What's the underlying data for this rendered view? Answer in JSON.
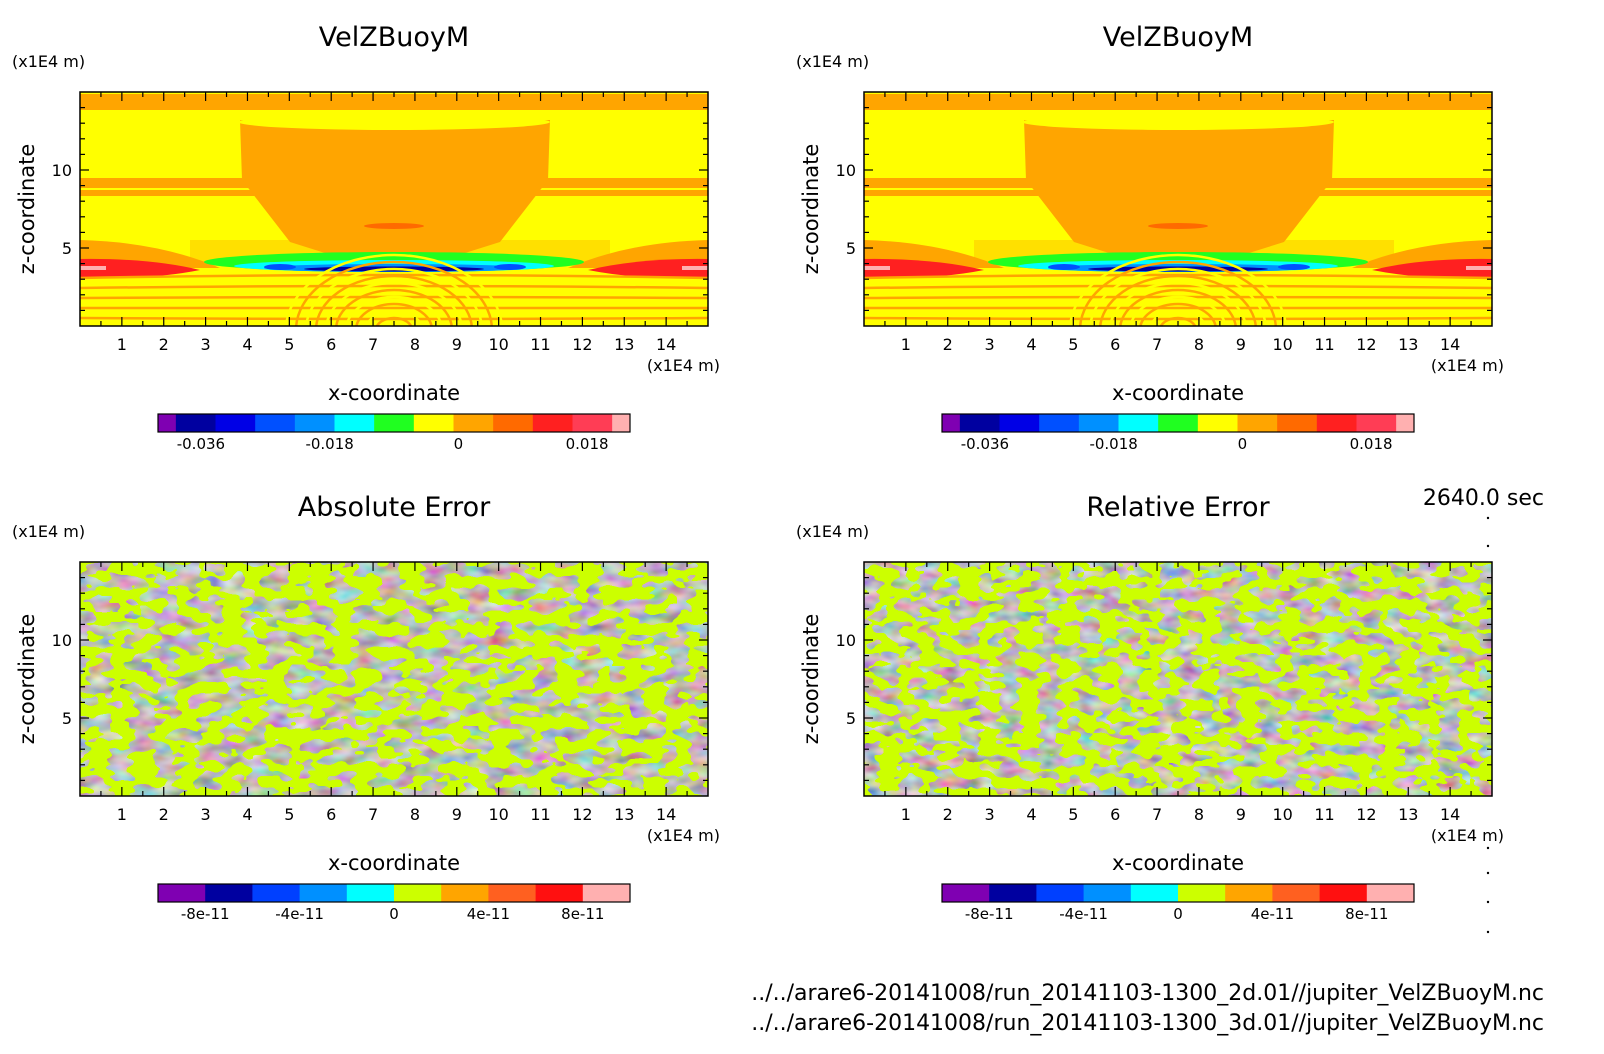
{
  "time_label": "2640.0 sec",
  "file_lines": [
    "../../arare6-20141008/run_20141103-1300_2d.01//jupiter_VelZBuoyM.nc",
    "../../arare6-20141008/run_20141103-1300_3d.01//jupiter_VelZBuoyM.nc"
  ],
  "colors": {
    "field_levels": [
      "#7f00b2",
      "#0000a0",
      "#0000e6",
      "#0050ff",
      "#0090ff",
      "#00ffff",
      "#20ff20",
      "#ffff00",
      "#ffa500",
      "#ff6a00",
      "#ff2020",
      "#ff3d55",
      "#ffb0b0"
    ],
    "error_levels": [
      "#7f00b2",
      "#0000a0",
      "#0040ff",
      "#0090ff",
      "#00ffff",
      "#ccff00",
      "#ffa500",
      "#ff6020",
      "#ff1010",
      "#ffb0b0"
    ]
  },
  "chart_data": [
    {
      "type": "heatmap",
      "title": "VelZBuoyM",
      "xlabel": "x-coordinate",
      "ylabel": "z-coordinate",
      "x_unit": "(x1E4 m)",
      "y_unit": "(x1E4 m)",
      "xlim": [
        0,
        15
      ],
      "ylim": [
        0,
        15
      ],
      "x_ticks": [
        "1",
        "2",
        "3",
        "4",
        "5",
        "6",
        "7",
        "8",
        "9",
        "10",
        "11",
        "12",
        "13",
        "14"
      ],
      "y_ticks": [
        "5",
        "10"
      ],
      "colorbar_ticks": [
        "-0.036",
        "-0.018",
        "0",
        "0.018"
      ],
      "colorbar_range": [
        -0.042,
        0.024
      ],
      "field": "velocity"
    },
    {
      "type": "heatmap",
      "title": "VelZBuoyM",
      "xlabel": "x-coordinate",
      "ylabel": "z-coordinate",
      "x_unit": "(x1E4 m)",
      "y_unit": "(x1E4 m)",
      "xlim": [
        0,
        15
      ],
      "ylim": [
        0,
        15
      ],
      "x_ticks": [
        "1",
        "2",
        "3",
        "4",
        "5",
        "6",
        "7",
        "8",
        "9",
        "10",
        "11",
        "12",
        "13",
        "14"
      ],
      "y_ticks": [
        "5",
        "10"
      ],
      "colorbar_ticks": [
        "-0.036",
        "-0.018",
        "0",
        "0.018"
      ],
      "colorbar_range": [
        -0.042,
        0.024
      ],
      "field": "velocity"
    },
    {
      "type": "heatmap",
      "title": "Absolute Error",
      "xlabel": "x-coordinate",
      "ylabel": "z-coordinate",
      "x_unit": "(x1E4 m)",
      "y_unit": "(x1E4 m)",
      "xlim": [
        0,
        15
      ],
      "ylim": [
        0,
        15
      ],
      "x_ticks": [
        "1",
        "2",
        "3",
        "4",
        "5",
        "6",
        "7",
        "8",
        "9",
        "10",
        "11",
        "12",
        "13",
        "14"
      ],
      "y_ticks": [
        "5",
        "10"
      ],
      "colorbar_ticks": [
        "-8e-11",
        "-4e-11",
        "0",
        "4e-11",
        "8e-11"
      ],
      "colorbar_range": [
        -1e-10,
        1e-10
      ],
      "field": "noise"
    },
    {
      "type": "heatmap",
      "title": "Relative Error",
      "xlabel": "x-coordinate",
      "ylabel": "z-coordinate",
      "x_unit": "(x1E4 m)",
      "y_unit": "(x1E4 m)",
      "xlim": [
        0,
        15
      ],
      "ylim": [
        0,
        15
      ],
      "x_ticks": [
        "1",
        "2",
        "3",
        "4",
        "5",
        "6",
        "7",
        "8",
        "9",
        "10",
        "11",
        "12",
        "13",
        "14"
      ],
      "y_ticks": [
        "5",
        "10"
      ],
      "colorbar_ticks": [
        "-8e-11",
        "-4e-11",
        "0",
        "4e-11",
        "8e-11"
      ],
      "colorbar_range": [
        -1e-10,
        1e-10
      ],
      "field": "noise"
    }
  ]
}
